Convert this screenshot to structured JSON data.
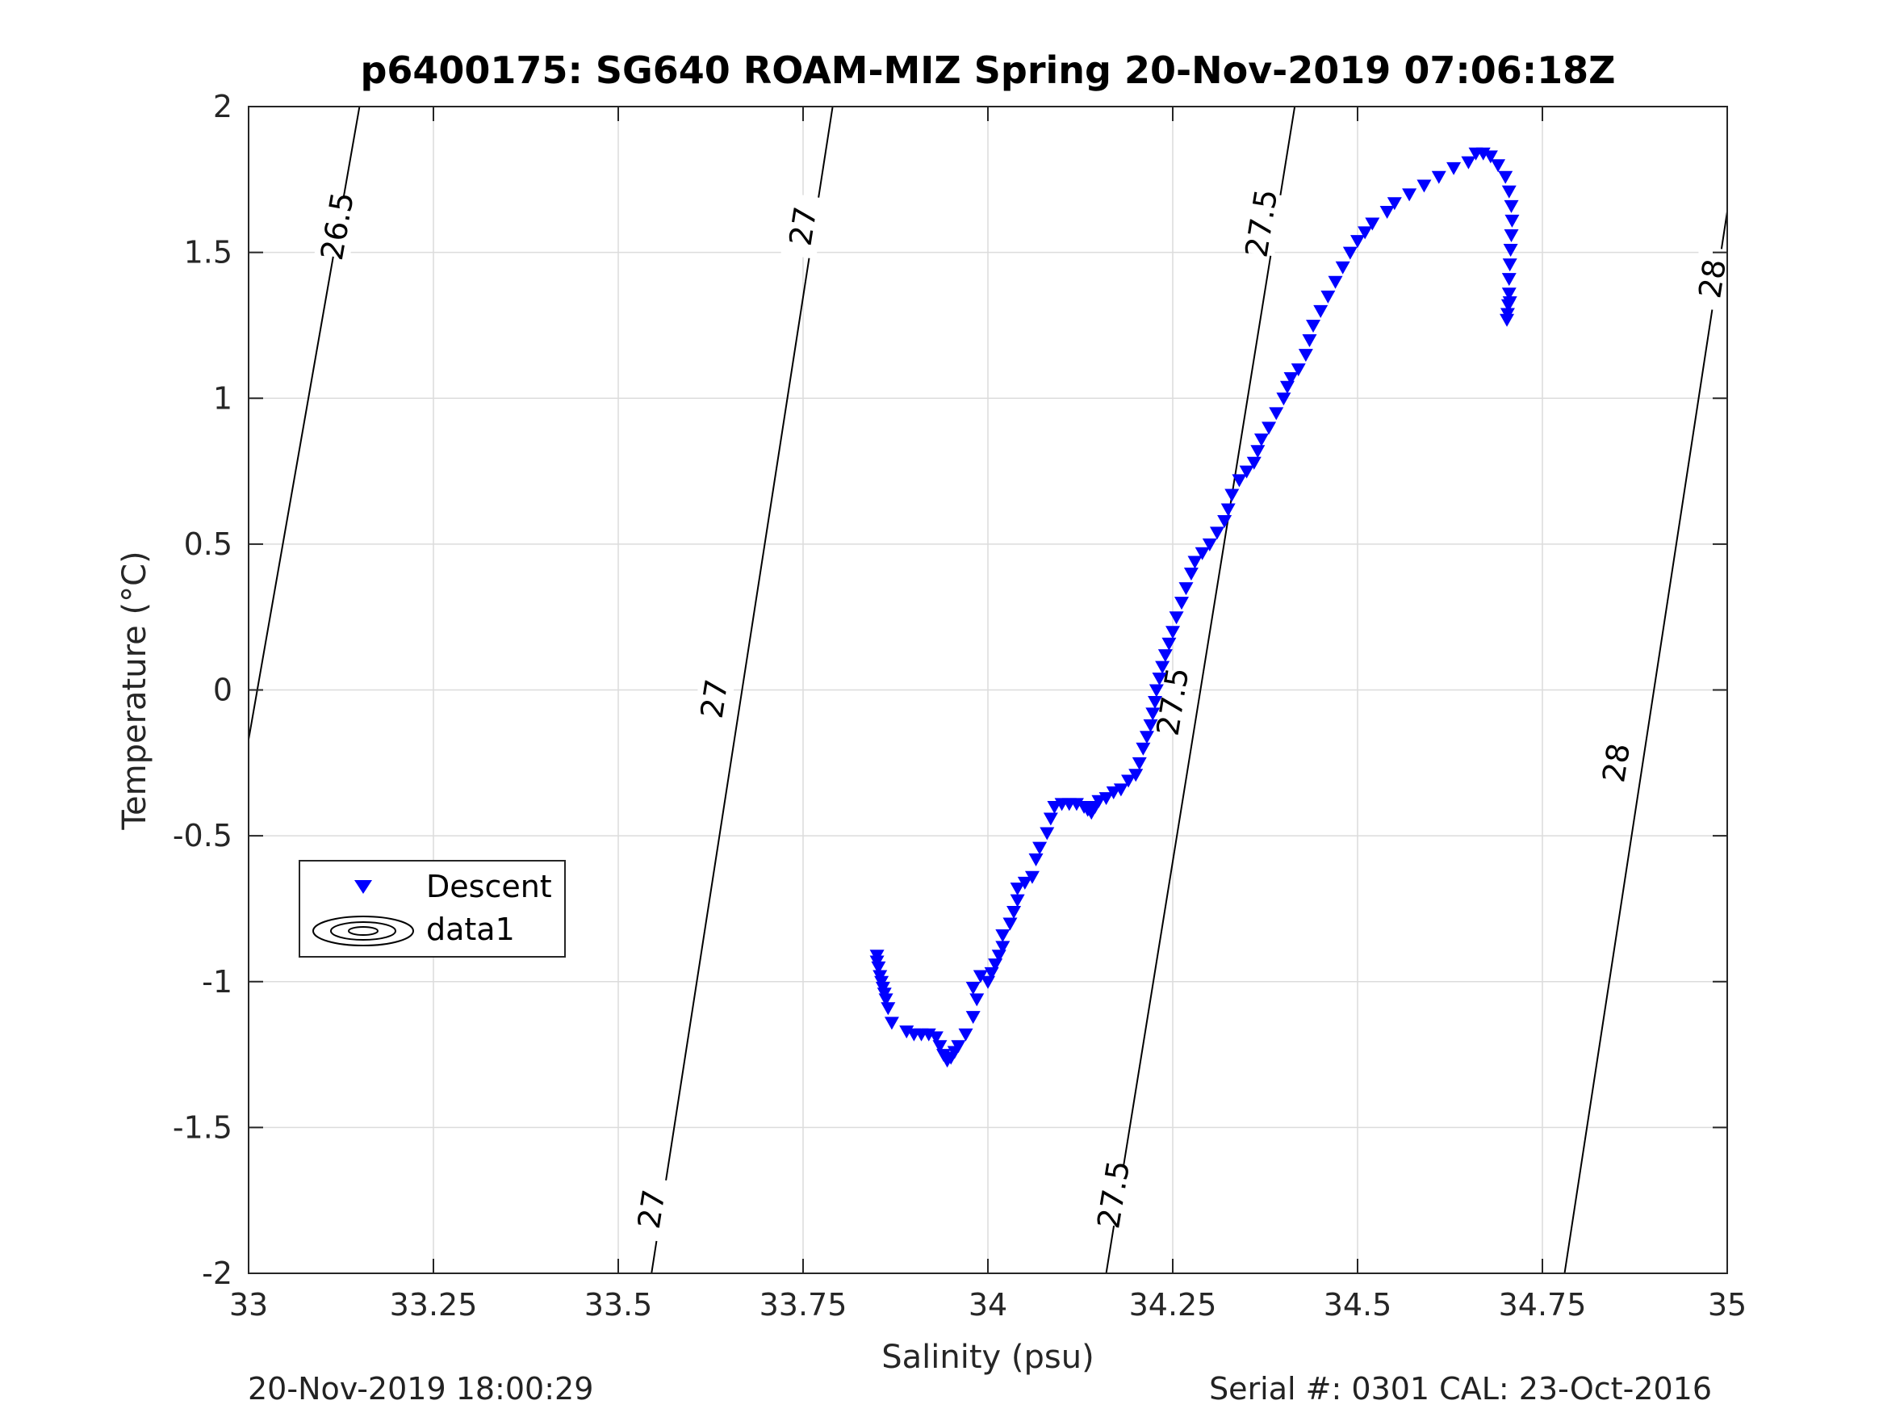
{
  "chart_data": {
    "type": "scatter",
    "title": "p6400175: SG640 ROAM-MIZ Spring 20-Nov-2019 07:06:18Z",
    "xlabel": "Salinity (psu)",
    "ylabel": "Temperature (°C)",
    "xlim": [
      33,
      35
    ],
    "ylim": [
      -2,
      2
    ],
    "xticks": [
      33,
      33.25,
      33.5,
      33.75,
      34,
      34.25,
      34.5,
      34.75,
      35
    ],
    "xtick_labels": [
      "33",
      "33.25",
      "33.5",
      "33.75",
      "34",
      "34.25",
      "34.5",
      "34.75",
      "35"
    ],
    "yticks": [
      -2,
      -1.5,
      -1,
      -0.5,
      0,
      0.5,
      1,
      1.5,
      2
    ],
    "ytick_labels": [
      "-2",
      "-1.5",
      "-1",
      "-0.5",
      "0",
      "0.5",
      "1",
      "1.5",
      "2"
    ],
    "grid": true,
    "legend": {
      "position": "center-left",
      "entries": [
        "Descent",
        "data1"
      ]
    },
    "series": [
      {
        "name": "Descent",
        "marker": "triangle-down",
        "color": "#0000ff",
        "points": [
          [
            33.85,
            -0.91
          ],
          [
            33.85,
            -0.93
          ],
          [
            33.852,
            -0.95
          ],
          [
            33.854,
            -0.98
          ],
          [
            33.856,
            -1.0
          ],
          [
            33.858,
            -1.02
          ],
          [
            33.86,
            -1.04
          ],
          [
            33.862,
            -1.06
          ],
          [
            33.865,
            -1.09
          ],
          [
            33.87,
            -1.14
          ],
          [
            33.89,
            -1.17
          ],
          [
            33.9,
            -1.18
          ],
          [
            33.91,
            -1.18
          ],
          [
            33.92,
            -1.18
          ],
          [
            33.93,
            -1.19
          ],
          [
            33.935,
            -1.22
          ],
          [
            33.94,
            -1.25
          ],
          [
            33.945,
            -1.27
          ],
          [
            33.95,
            -1.26
          ],
          [
            33.955,
            -1.24
          ],
          [
            33.96,
            -1.22
          ],
          [
            33.97,
            -1.18
          ],
          [
            33.98,
            -1.12
          ],
          [
            33.985,
            -1.06
          ],
          [
            33.98,
            -1.02
          ],
          [
            33.99,
            -0.98
          ],
          [
            34.0,
            -1.0
          ],
          [
            34.005,
            -0.97
          ],
          [
            34.01,
            -0.94
          ],
          [
            34.015,
            -0.91
          ],
          [
            34.02,
            -0.88
          ],
          [
            34.02,
            -0.84
          ],
          [
            34.03,
            -0.8
          ],
          [
            34.035,
            -0.76
          ],
          [
            34.04,
            -0.72
          ],
          [
            34.04,
            -0.68
          ],
          [
            34.05,
            -0.66
          ],
          [
            34.06,
            -0.64
          ],
          [
            34.065,
            -0.58
          ],
          [
            34.07,
            -0.54
          ],
          [
            34.08,
            -0.49
          ],
          [
            34.085,
            -0.44
          ],
          [
            34.09,
            -0.4
          ],
          [
            34.1,
            -0.39
          ],
          [
            34.11,
            -0.39
          ],
          [
            34.12,
            -0.39
          ],
          [
            34.13,
            -0.4
          ],
          [
            34.135,
            -0.41
          ],
          [
            34.14,
            -0.42
          ],
          [
            34.145,
            -0.4
          ],
          [
            34.15,
            -0.38
          ],
          [
            34.16,
            -0.37
          ],
          [
            34.17,
            -0.35
          ],
          [
            34.18,
            -0.34
          ],
          [
            34.19,
            -0.31
          ],
          [
            34.2,
            -0.29
          ],
          [
            34.205,
            -0.25
          ],
          [
            34.21,
            -0.2
          ],
          [
            34.215,
            -0.16
          ],
          [
            34.22,
            -0.12
          ],
          [
            34.223,
            -0.08
          ],
          [
            34.226,
            -0.04
          ],
          [
            34.228,
            0.0
          ],
          [
            34.232,
            0.04
          ],
          [
            34.236,
            0.08
          ],
          [
            34.24,
            0.12
          ],
          [
            34.245,
            0.16
          ],
          [
            34.25,
            0.2
          ],
          [
            34.255,
            0.25
          ],
          [
            34.262,
            0.3
          ],
          [
            34.268,
            0.35
          ],
          [
            34.275,
            0.4
          ],
          [
            34.28,
            0.44
          ],
          [
            34.29,
            0.47
          ],
          [
            34.3,
            0.5
          ],
          [
            34.31,
            0.54
          ],
          [
            34.32,
            0.58
          ],
          [
            34.325,
            0.62
          ],
          [
            34.33,
            0.67
          ],
          [
            34.34,
            0.72
          ],
          [
            34.35,
            0.75
          ],
          [
            34.36,
            0.78
          ],
          [
            34.365,
            0.82
          ],
          [
            34.37,
            0.86
          ],
          [
            34.38,
            0.9
          ],
          [
            34.39,
            0.95
          ],
          [
            34.4,
            1.0
          ],
          [
            34.405,
            1.04
          ],
          [
            34.41,
            1.07
          ],
          [
            34.42,
            1.1
          ],
          [
            34.43,
            1.15
          ],
          [
            34.435,
            1.2
          ],
          [
            34.44,
            1.25
          ],
          [
            34.45,
            1.3
          ],
          [
            34.46,
            1.35
          ],
          [
            34.47,
            1.4
          ],
          [
            34.48,
            1.45
          ],
          [
            34.49,
            1.5
          ],
          [
            34.5,
            1.54
          ],
          [
            34.51,
            1.57
          ],
          [
            34.52,
            1.6
          ],
          [
            34.54,
            1.64
          ],
          [
            34.55,
            1.67
          ],
          [
            34.57,
            1.7
          ],
          [
            34.59,
            1.73
          ],
          [
            34.61,
            1.76
          ],
          [
            34.63,
            1.79
          ],
          [
            34.65,
            1.81
          ],
          [
            34.66,
            1.84
          ],
          [
            34.67,
            1.84
          ],
          [
            34.68,
            1.83
          ],
          [
            34.69,
            1.8
          ],
          [
            34.7,
            1.76
          ],
          [
            34.705,
            1.71
          ],
          [
            34.708,
            1.66
          ],
          [
            34.709,
            1.61
          ],
          [
            34.708,
            1.56
          ],
          [
            34.707,
            1.51
          ],
          [
            34.706,
            1.46
          ],
          [
            34.705,
            1.41
          ],
          [
            34.705,
            1.36
          ],
          [
            34.704,
            1.32
          ],
          [
            34.703,
            1.29
          ],
          [
            34.702,
            1.27
          ],
          [
            34.706,
            1.33
          ]
        ]
      },
      {
        "name": "data1",
        "marker": "contour",
        "color": "#000000",
        "contours": [
          {
            "level": "26.5",
            "points": [
              [
                33.0,
                -0.17
              ],
              [
                33.15,
                2.0
              ]
            ],
            "labels": [
              [
                33.12,
                1.59
              ]
            ]
          },
          {
            "level": "27",
            "points": [
              [
                33.545,
                -2.0
              ],
              [
                33.79,
                2.0
              ]
            ],
            "labels": [
              [
                33.545,
                -1.78
              ],
              [
                33.63,
                -0.03
              ],
              [
                33.75,
                1.59
              ]
            ]
          },
          {
            "level": "27.5",
            "points": [
              [
                34.16,
                -2.0
              ],
              [
                34.415,
                2.0
              ]
            ],
            "labels": [
              [
                34.17,
                -1.73
              ],
              [
                34.25,
                -0.04
              ],
              [
                34.37,
                1.6
              ]
            ]
          },
          {
            "level": "28",
            "points": [
              [
                34.78,
                -2.0
              ],
              [
                35.0,
                1.64
              ]
            ],
            "labels": [
              [
                34.85,
                -0.25
              ],
              [
                34.98,
                1.41
              ]
            ]
          }
        ]
      }
    ]
  },
  "footer": {
    "left": "20-Nov-2019 18:00:29",
    "right": "Serial #: 0301  CAL: 23-Oct-2016"
  }
}
